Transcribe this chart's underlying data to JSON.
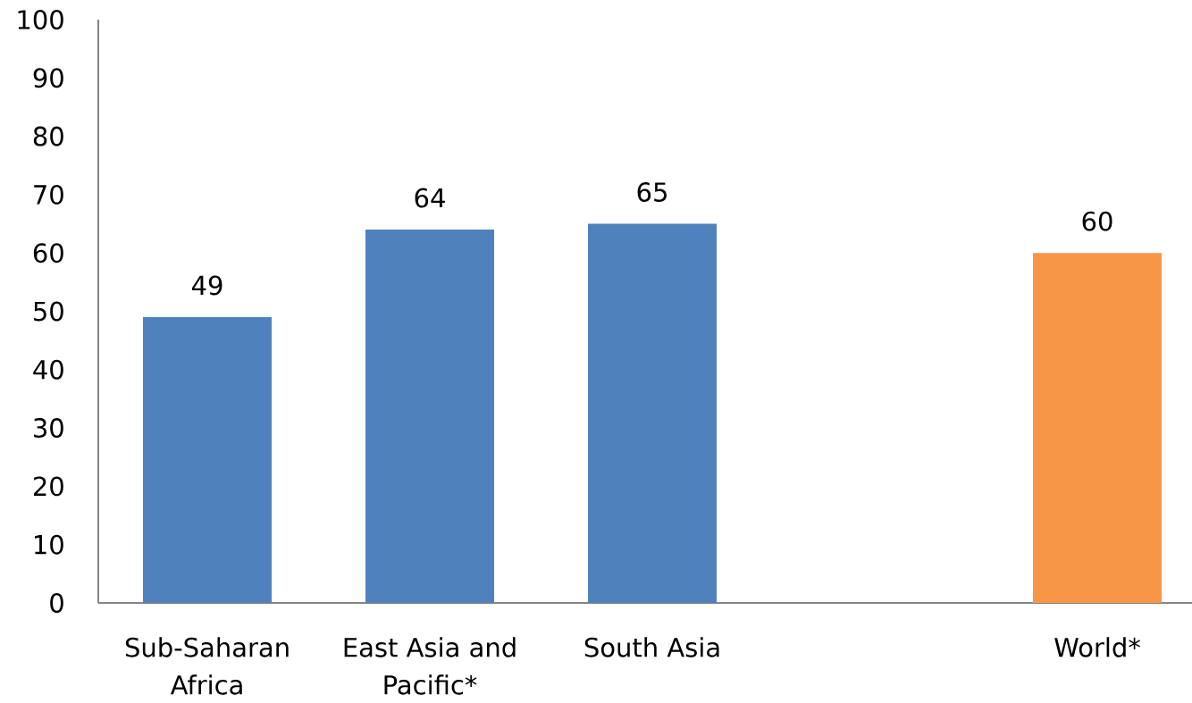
{
  "chart_data": {
    "type": "bar",
    "categories": [
      "Sub-Saharan Africa",
      "East Asia and Pacific*",
      "South Asia",
      null,
      "World*"
    ],
    "values": [
      49,
      64,
      65,
      null,
      60
    ],
    "colors": [
      "#4f81bd",
      "#4f81bd",
      "#4f81bd",
      null,
      "#f79646"
    ],
    "ylim": [
      0,
      100
    ],
    "yticks": [
      0,
      10,
      20,
      30,
      40,
      50,
      60,
      70,
      80,
      90,
      100
    ],
    "data_labels": true
  }
}
